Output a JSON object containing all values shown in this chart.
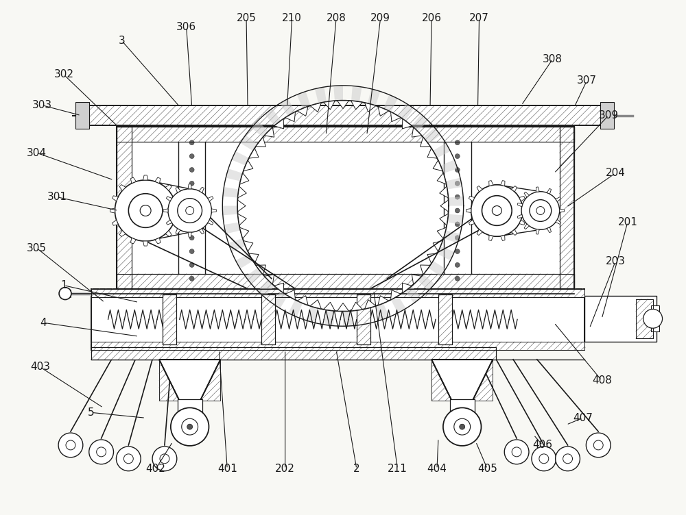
{
  "bg_color": "#f8f8f4",
  "line_color": "#1a1a1a",
  "label_color": "#1a1a1a",
  "fig_width": 10.0,
  "fig_height": 7.52,
  "label_fontsize": 11
}
